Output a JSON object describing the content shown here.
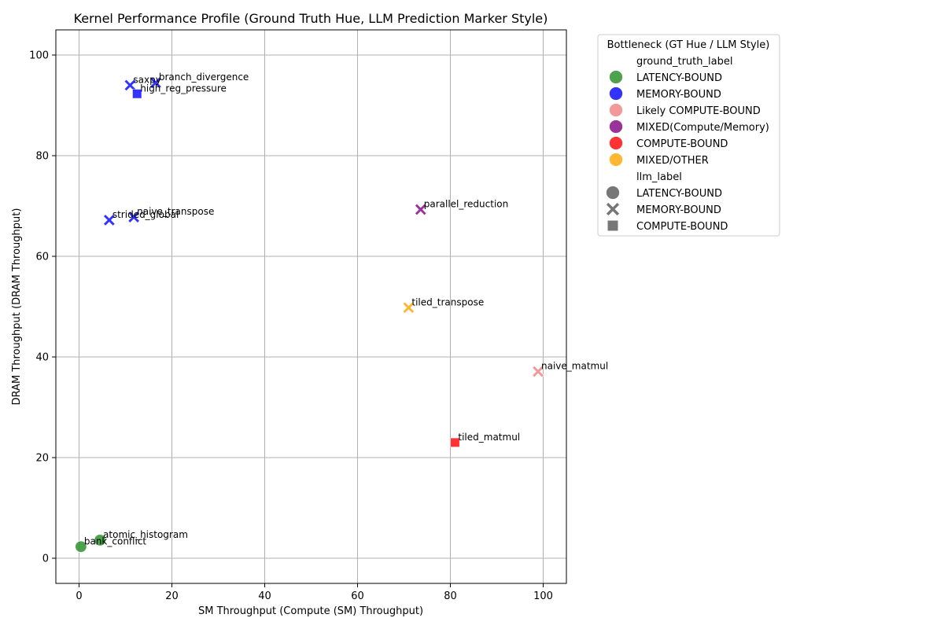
{
  "chart_data": {
    "type": "scatter",
    "title": "Kernel Performance Profile (Ground Truth Hue, LLM Prediction Marker Style)",
    "xlabel": "SM Throughput (Compute (SM) Throughput)",
    "ylabel": "DRAM Throughput (DRAM Throughput)",
    "xlim": [
      -5,
      105
    ],
    "ylim": [
      -5,
      105
    ],
    "xticks": [
      0,
      20,
      40,
      60,
      80,
      100
    ],
    "yticks": [
      0,
      20,
      40,
      60,
      80,
      100
    ],
    "grid": true,
    "legend": {
      "title": "Bottleneck (GT Hue / LLM Style)",
      "placement": "outside-top-right",
      "hue_header": "ground_truth_label",
      "style_header": "llm_label",
      "hue_entries": [
        {
          "label": "LATENCY-BOUND",
          "color": "#228b22"
        },
        {
          "label": "MEMORY-BOUND",
          "color": "#0000ff"
        },
        {
          "label": "Likely COMPUTE-BOUND",
          "color": "#f08080"
        },
        {
          "label": "MIXED(Compute/Memory)",
          "color": "#800080"
        },
        {
          "label": "COMPUTE-BOUND",
          "color": "#ff0000"
        },
        {
          "label": "MIXED/OTHER",
          "color": "#ffa500"
        }
      ],
      "style_entries": [
        {
          "label": "LATENCY-BOUND",
          "marker": "circle"
        },
        {
          "label": "MEMORY-BOUND",
          "marker": "x"
        },
        {
          "label": "COMPUTE-BOUND",
          "marker": "square"
        }
      ]
    },
    "points": [
      {
        "name": "saxpy",
        "x": 11.0,
        "y": 94.0,
        "gt": "MEMORY-BOUND",
        "llm": "MEMORY-BOUND"
      },
      {
        "name": "branch_divergence",
        "x": 16.5,
        "y": 94.5,
        "gt": "MEMORY-BOUND",
        "llm": "MEMORY-BOUND"
      },
      {
        "name": "high_reg_pressure",
        "x": 12.5,
        "y": 92.3,
        "gt": "MEMORY-BOUND",
        "llm": "COMPUTE-BOUND"
      },
      {
        "name": "strided_global",
        "x": 6.5,
        "y": 67.2,
        "gt": "MEMORY-BOUND",
        "llm": "MEMORY-BOUND"
      },
      {
        "name": "naive_transpose",
        "x": 11.8,
        "y": 67.8,
        "gt": "MEMORY-BOUND",
        "llm": "MEMORY-BOUND"
      },
      {
        "name": "parallel_reduction",
        "x": 73.6,
        "y": 69.3,
        "gt": "MIXED(Compute/Memory)",
        "llm": "MEMORY-BOUND"
      },
      {
        "name": "tiled_transpose",
        "x": 71.0,
        "y": 49.8,
        "gt": "MIXED/OTHER",
        "llm": "MEMORY-BOUND"
      },
      {
        "name": "naive_matmul",
        "x": 98.9,
        "y": 37.1,
        "gt": "Likely COMPUTE-BOUND",
        "llm": "MEMORY-BOUND"
      },
      {
        "name": "tiled_matmul",
        "x": 81.0,
        "y": 23.0,
        "gt": "COMPUTE-BOUND",
        "llm": "COMPUTE-BOUND"
      },
      {
        "name": "atomic_histogram",
        "x": 4.5,
        "y": 3.6,
        "gt": "LATENCY-BOUND",
        "llm": "LATENCY-BOUND"
      },
      {
        "name": "bank_conflict",
        "x": 0.4,
        "y": 2.3,
        "gt": "LATENCY-BOUND",
        "llm": "LATENCY-BOUND"
      }
    ]
  }
}
